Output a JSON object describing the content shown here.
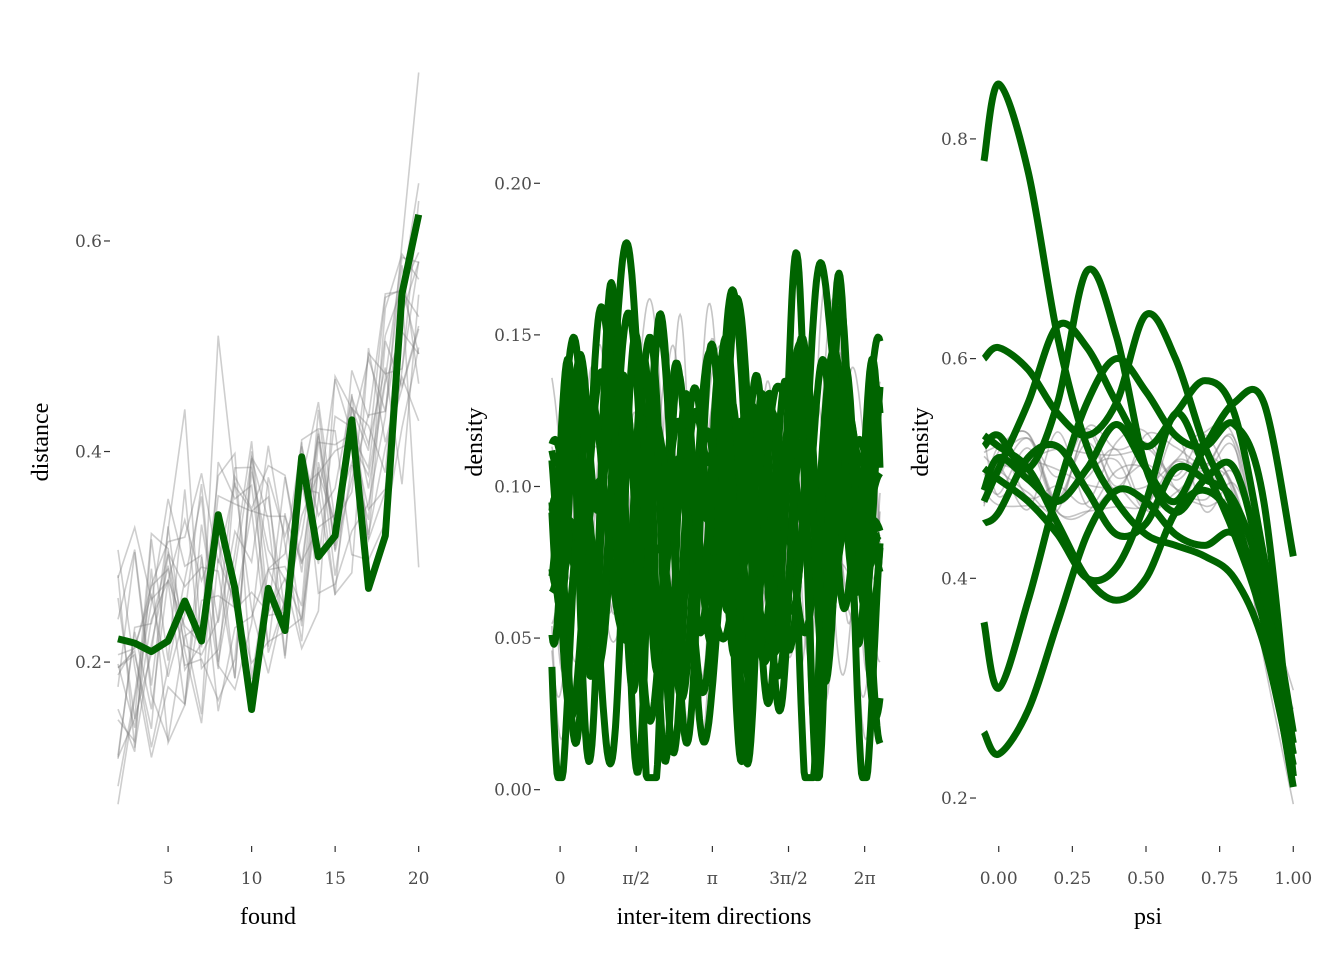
{
  "colors": {
    "highlight": "#006400",
    "background_lines": "#7f7f7f"
  },
  "chart_data": [
    {
      "type": "line",
      "xlabel": "found",
      "ylabel": "distance",
      "xlim": [
        2,
        20.2
      ],
      "ylim": [
        0.05,
        0.77
      ],
      "x_ticks": [
        5,
        10,
        15,
        20
      ],
      "x_tick_labels": [
        "5",
        "10",
        "15",
        "20"
      ],
      "y_ticks": [
        0.2,
        0.4,
        0.6
      ],
      "y_tick_labels": [
        "0.2",
        "0.4",
        "0.6"
      ],
      "grid": false,
      "background_series_count": 18,
      "highlight": {
        "x": [
          2,
          3,
          4,
          5,
          6,
          7,
          8,
          9,
          10,
          11,
          12,
          13,
          14,
          15,
          16,
          17,
          18,
          19,
          20
        ],
        "values": [
          0.222,
          0.218,
          0.21,
          0.22,
          0.258,
          0.22,
          0.34,
          0.27,
          0.155,
          0.27,
          0.23,
          0.395,
          0.3,
          0.32,
          0.43,
          0.27,
          0.32,
          0.55,
          0.625
        ]
      }
    },
    {
      "type": "line",
      "xlabel": "inter-item directions",
      "ylabel": "density",
      "xlim": [
        -0.25,
        6.6
      ],
      "ylim": [
        -0.01,
        0.24
      ],
      "x_ticks": [
        0,
        1.5708,
        3.1416,
        4.7124,
        6.2832
      ],
      "x_tick_labels": [
        "0",
        "π/2",
        "π",
        "3π/2",
        "2π"
      ],
      "y_ticks": [
        0,
        0.05,
        0.1,
        0.15,
        0.2
      ],
      "y_tick_labels": [
        "0.00",
        "0.05",
        "0.10",
        "0.15",
        "0.20"
      ],
      "grid": false,
      "highlight_series_count": 12,
      "background_series_count": 12
    },
    {
      "type": "line",
      "xlabel": "psi",
      "ylabel": "density",
      "xlim": [
        -0.05,
        1.05
      ],
      "ylim": [
        0.18,
        0.87
      ],
      "x_ticks": [
        0,
        0.25,
        0.5,
        0.75,
        1
      ],
      "x_tick_labels": [
        "0.00",
        "0.25",
        "0.50",
        "0.75",
        "1.00"
      ],
      "y_ticks": [
        0.2,
        0.4,
        0.6,
        0.8
      ],
      "y_tick_labels": [
        "0.2",
        "0.4",
        "0.6",
        "0.8"
      ],
      "grid": false,
      "background_series_count": 12,
      "highlight_series": [
        {
          "x": [
            -0.05,
            0,
            0.1,
            0.2,
            0.3,
            0.4,
            0.5,
            0.6,
            0.7,
            0.8,
            0.9,
            1.0
          ],
          "values": [
            0.78,
            0.85,
            0.77,
            0.62,
            0.52,
            0.47,
            0.44,
            0.43,
            0.42,
            0.4,
            0.34,
            0.22
          ]
        },
        {
          "x": [
            -0.05,
            0,
            0.1,
            0.2,
            0.3,
            0.4,
            0.5,
            0.6,
            0.7,
            0.8,
            0.9,
            1.0
          ],
          "values": [
            0.6,
            0.61,
            0.59,
            0.55,
            0.53,
            0.56,
            0.64,
            0.6,
            0.52,
            0.46,
            0.36,
            0.23
          ]
        },
        {
          "x": [
            -0.05,
            0,
            0.1,
            0.2,
            0.3,
            0.4,
            0.5,
            0.6,
            0.7,
            0.8,
            0.9,
            1.0
          ],
          "values": [
            0.52,
            0.53,
            0.5,
            0.56,
            0.68,
            0.62,
            0.5,
            0.46,
            0.49,
            0.5,
            0.4,
            0.25
          ]
        },
        {
          "x": [
            -0.05,
            0,
            0.1,
            0.2,
            0.3,
            0.4,
            0.5,
            0.6,
            0.7,
            0.8,
            0.9,
            1.0
          ],
          "values": [
            0.47,
            0.5,
            0.56,
            0.63,
            0.61,
            0.56,
            0.52,
            0.55,
            0.58,
            0.55,
            0.42,
            0.26
          ]
        },
        {
          "x": [
            -0.05,
            0,
            0.1,
            0.2,
            0.3,
            0.4,
            0.5,
            0.6,
            0.7,
            0.8,
            0.9,
            1.0
          ],
          "values": [
            0.36,
            0.3,
            0.38,
            0.48,
            0.56,
            0.6,
            0.57,
            0.53,
            0.52,
            0.54,
            0.47,
            0.22
          ]
        },
        {
          "x": [
            -0.05,
            0,
            0.1,
            0.2,
            0.3,
            0.4,
            0.5,
            0.6,
            0.7,
            0.8,
            0.9,
            1.0
          ],
          "values": [
            0.48,
            0.51,
            0.49,
            0.47,
            0.5,
            0.54,
            0.5,
            0.47,
            0.52,
            0.56,
            0.56,
            0.42
          ]
        },
        {
          "x": [
            -0.05,
            0,
            0.1,
            0.2,
            0.3,
            0.4,
            0.5,
            0.6,
            0.7,
            0.8,
            0.9,
            1.0
          ],
          "values": [
            0.5,
            0.49,
            0.47,
            0.44,
            0.4,
            0.41,
            0.47,
            0.55,
            0.5,
            0.44,
            0.36,
            0.24
          ]
        },
        {
          "x": [
            -0.05,
            0,
            0.1,
            0.2,
            0.3,
            0.4,
            0.5,
            0.6,
            0.7,
            0.8,
            0.9,
            1.0
          ],
          "values": [
            0.26,
            0.24,
            0.28,
            0.36,
            0.44,
            0.48,
            0.47,
            0.44,
            0.43,
            0.44,
            0.38,
            0.22
          ]
        },
        {
          "x": [
            -0.05,
            0,
            0.1,
            0.2,
            0.3,
            0.4,
            0.5,
            0.6,
            0.7,
            0.8,
            0.9,
            1.0
          ],
          "values": [
            0.45,
            0.46,
            0.51,
            0.52,
            0.48,
            0.44,
            0.45,
            0.5,
            0.49,
            0.47,
            0.39,
            0.24
          ]
        },
        {
          "x": [
            -0.05,
            0,
            0.1,
            0.2,
            0.3,
            0.4,
            0.5,
            0.6,
            0.7,
            0.8,
            0.9,
            1.0
          ],
          "values": [
            0.53,
            0.52,
            0.5,
            0.45,
            0.4,
            0.38,
            0.4,
            0.46,
            0.48,
            0.45,
            0.36,
            0.21
          ]
        }
      ]
    }
  ]
}
